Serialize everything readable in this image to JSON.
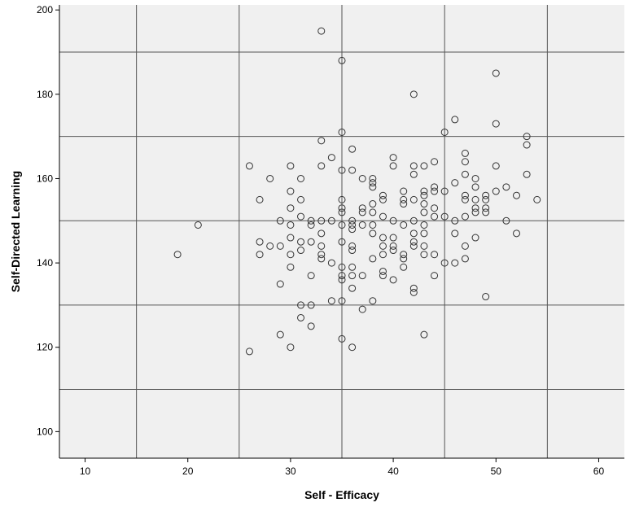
{
  "chart_data": {
    "type": "scatter",
    "title": "",
    "xlabel": "Self - Efficacy",
    "ylabel": "Self-Directed Learning",
    "xlim": [
      7.5,
      62.5
    ],
    "ylim": [
      93.7,
      201.2
    ],
    "x_ticks": [
      10,
      20,
      30,
      40,
      50,
      60
    ],
    "y_ticks": [
      100,
      120,
      140,
      160,
      180,
      200
    ],
    "x_gridlines": [
      15,
      25,
      35,
      45,
      55
    ],
    "y_gridlines": [
      110,
      130,
      150,
      170,
      190
    ],
    "grid": true,
    "background_color": "#f0f0f0",
    "grid_color": "#555555",
    "marker": "open-circle",
    "series": [
      {
        "points": [
          [
            19,
            142
          ],
          [
            21,
            149
          ],
          [
            26,
            163
          ],
          [
            26,
            119
          ],
          [
            27,
            155
          ],
          [
            27,
            145
          ],
          [
            27,
            142
          ],
          [
            28,
            160
          ],
          [
            28,
            144
          ],
          [
            29,
            150
          ],
          [
            29,
            144
          ],
          [
            29,
            135
          ],
          [
            29,
            123
          ],
          [
            30,
            163
          ],
          [
            30,
            157
          ],
          [
            30,
            153
          ],
          [
            30,
            149
          ],
          [
            30,
            146
          ],
          [
            30,
            142
          ],
          [
            30,
            139
          ],
          [
            30,
            120
          ],
          [
            31,
            160
          ],
          [
            31,
            155
          ],
          [
            31,
            151
          ],
          [
            31,
            145
          ],
          [
            31,
            143
          ],
          [
            31,
            130
          ],
          [
            31,
            127
          ],
          [
            32,
            150
          ],
          [
            32,
            149
          ],
          [
            32,
            145
          ],
          [
            32,
            137
          ],
          [
            32,
            130
          ],
          [
            32,
            125
          ],
          [
            33,
            195
          ],
          [
            33,
            169
          ],
          [
            33,
            163
          ],
          [
            33,
            150
          ],
          [
            33,
            147
          ],
          [
            33,
            144
          ],
          [
            33,
            142
          ],
          [
            33,
            141
          ],
          [
            34,
            165
          ],
          [
            34,
            150
          ],
          [
            34,
            140
          ],
          [
            34,
            131
          ],
          [
            35,
            188
          ],
          [
            35,
            171
          ],
          [
            35,
            162
          ],
          [
            35,
            155
          ],
          [
            35,
            153
          ],
          [
            35,
            152
          ],
          [
            35,
            149
          ],
          [
            35,
            145
          ],
          [
            35,
            139
          ],
          [
            35,
            137
          ],
          [
            35,
            136
          ],
          [
            35,
            131
          ],
          [
            35,
            122
          ],
          [
            36,
            167
          ],
          [
            36,
            162
          ],
          [
            36,
            150
          ],
          [
            36,
            149
          ],
          [
            36,
            148
          ],
          [
            36,
            144
          ],
          [
            36,
            143
          ],
          [
            36,
            139
          ],
          [
            36,
            137
          ],
          [
            36,
            134
          ],
          [
            36,
            120
          ],
          [
            37,
            160
          ],
          [
            37,
            153
          ],
          [
            37,
            152
          ],
          [
            37,
            149
          ],
          [
            37,
            137
          ],
          [
            37,
            129
          ],
          [
            38,
            160
          ],
          [
            38,
            159
          ],
          [
            38,
            158
          ],
          [
            38,
            154
          ],
          [
            38,
            152
          ],
          [
            38,
            149
          ],
          [
            38,
            147
          ],
          [
            38,
            141
          ],
          [
            38,
            131
          ],
          [
            39,
            156
          ],
          [
            39,
            155
          ],
          [
            39,
            151
          ],
          [
            39,
            146
          ],
          [
            39,
            144
          ],
          [
            39,
            142
          ],
          [
            39,
            138
          ],
          [
            39,
            137
          ],
          [
            40,
            165
          ],
          [
            40,
            163
          ],
          [
            40,
            150
          ],
          [
            40,
            146
          ],
          [
            40,
            144
          ],
          [
            40,
            143
          ],
          [
            40,
            136
          ],
          [
            41,
            157
          ],
          [
            41,
            155
          ],
          [
            41,
            154
          ],
          [
            41,
            149
          ],
          [
            41,
            142
          ],
          [
            41,
            141
          ],
          [
            41,
            139
          ],
          [
            42,
            180
          ],
          [
            42,
            163
          ],
          [
            42,
            161
          ],
          [
            42,
            155
          ],
          [
            42,
            150
          ],
          [
            42,
            147
          ],
          [
            42,
            145
          ],
          [
            42,
            144
          ],
          [
            42,
            134
          ],
          [
            42,
            133
          ],
          [
            43,
            163
          ],
          [
            43,
            157
          ],
          [
            43,
            156
          ],
          [
            43,
            154
          ],
          [
            43,
            152
          ],
          [
            43,
            149
          ],
          [
            43,
            147
          ],
          [
            43,
            144
          ],
          [
            43,
            142
          ],
          [
            43,
            123
          ],
          [
            44,
            164
          ],
          [
            44,
            158
          ],
          [
            44,
            157
          ],
          [
            44,
            153
          ],
          [
            44,
            151
          ],
          [
            44,
            142
          ],
          [
            44,
            137
          ],
          [
            45,
            171
          ],
          [
            45,
            157
          ],
          [
            45,
            151
          ],
          [
            45,
            140
          ],
          [
            46,
            174
          ],
          [
            46,
            159
          ],
          [
            46,
            150
          ],
          [
            46,
            147
          ],
          [
            46,
            140
          ],
          [
            47,
            166
          ],
          [
            47,
            164
          ],
          [
            47,
            161
          ],
          [
            47,
            156
          ],
          [
            47,
            155
          ],
          [
            47,
            151
          ],
          [
            47,
            144
          ],
          [
            47,
            141
          ],
          [
            48,
            160
          ],
          [
            48,
            158
          ],
          [
            48,
            155
          ],
          [
            48,
            153
          ],
          [
            48,
            152
          ],
          [
            48,
            146
          ],
          [
            49,
            156
          ],
          [
            49,
            155
          ],
          [
            49,
            153
          ],
          [
            49,
            152
          ],
          [
            49,
            132
          ],
          [
            50,
            185
          ],
          [
            50,
            173
          ],
          [
            50,
            163
          ],
          [
            50,
            157
          ],
          [
            51,
            158
          ],
          [
            51,
            150
          ],
          [
            52,
            156
          ],
          [
            52,
            147
          ],
          [
            53,
            170
          ],
          [
            53,
            168
          ],
          [
            53,
            161
          ],
          [
            54,
            155
          ]
        ]
      }
    ]
  }
}
